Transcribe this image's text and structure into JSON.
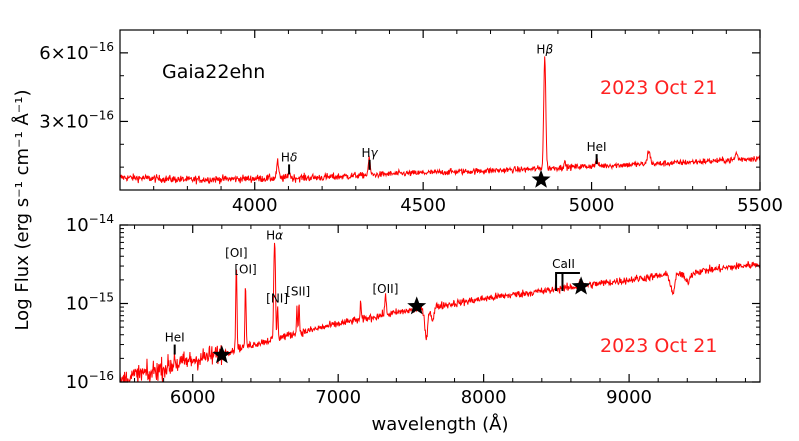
{
  "chart_data": [
    {
      "type": "line",
      "panel": "top",
      "title": "Gaia22ehn",
      "date_label": "2023 Oct 21",
      "xlim": [
        3600,
        5500
      ],
      "ylim": [
        0,
        7e-16
      ],
      "x_ticks": [
        {
          "value": 4000,
          "label": "4000"
        },
        {
          "value": 4500,
          "label": "4500"
        },
        {
          "value": 5000,
          "label": "5000"
        },
        {
          "value": 5500,
          "label": "5500"
        }
      ],
      "x_minor_step": 100,
      "y_ticks": [
        {
          "value": 3e-16,
          "base": "3×10",
          "exp": "−16"
        },
        {
          "value": 6e-16,
          "base": "6×10",
          "exp": "−16"
        }
      ],
      "y_minor_step": 1e-16,
      "line_labels": [
        {
          "name": "Hδ",
          "main": "H",
          "sub": "δ",
          "x": 4102,
          "y": 1.12e-16
        },
        {
          "name": "Hγ",
          "main": "H",
          "sub": "γ",
          "x": 4341,
          "y": 1.32e-16
        },
        {
          "name": "Hβ",
          "main": "H",
          "sub": "β",
          "x": 4861,
          "y": 5.85e-16
        },
        {
          "name": "HeI",
          "main": "HeI",
          "sub": "",
          "x": 5015,
          "y": 1.57e-16
        }
      ],
      "stars": [
        {
          "x": 4850,
          "y": 4.5e-17
        }
      ],
      "spectrum": {
        "continuum": [
          [
            3600,
            5.5e-17
          ],
          [
            3800,
            4.5e-17
          ],
          [
            4000,
            5e-17
          ],
          [
            4200,
            5.5e-17
          ],
          [
            4400,
            7e-17
          ],
          [
            4600,
            8e-17
          ],
          [
            4800,
            9e-17
          ],
          [
            5000,
            1.05e-16
          ],
          [
            5200,
            1.15e-16
          ],
          [
            5400,
            1.3e-16
          ],
          [
            5500,
            1.4e-16
          ]
        ],
        "emission": [
          [
            4068,
            7e-17,
            3
          ],
          [
            4102,
            3e-17,
            3
          ],
          [
            4340,
            7e-17,
            3
          ],
          [
            4861,
            4.9e-16,
            3
          ],
          [
            4920,
            2e-17,
            3
          ],
          [
            5015,
            2.5e-17,
            3
          ],
          [
            5170,
            6e-17,
            4
          ],
          [
            5430,
            3e-17,
            3
          ]
        ],
        "noise": 1.2e-17
      }
    },
    {
      "type": "line",
      "panel": "bottom",
      "scale": "log",
      "date_label": "2023 Oct 21",
      "xlabel": "wavelength (Å)",
      "xlim": [
        5500,
        9900
      ],
      "ylim": [
        1e-16,
        1e-14
      ],
      "x_ticks": [
        {
          "value": 6000,
          "label": "6000"
        },
        {
          "value": 7000,
          "label": "7000"
        },
        {
          "value": 8000,
          "label": "8000"
        },
        {
          "value": 9000,
          "label": "9000"
        }
      ],
      "x_minor_step": 200,
      "y_ticks": [
        {
          "value": 1e-16,
          "base": "10",
          "exp": "−16"
        },
        {
          "value": 1e-15,
          "base": "10",
          "exp": "−15"
        },
        {
          "value": 1e-14,
          "base": "10",
          "exp": "−14"
        }
      ],
      "line_labels": [
        {
          "name": "HeI",
          "main": "HeI",
          "sub": "",
          "x": 5876,
          "y": 3e-16
        },
        {
          "name": "[OI] 6300",
          "main": "[OI]",
          "sub": "",
          "x": 6300,
          "y": 3.6e-15
        },
        {
          "name": "[OI] 6363",
          "main": "[OI]",
          "sub": "",
          "x": 6363,
          "y": 2.2e-15
        },
        {
          "name": "Hα",
          "main": "H",
          "sub": "α",
          "x": 6563,
          "y": 6e-15
        },
        {
          "name": "[NI]",
          "main": "[NI]",
          "sub": "",
          "x": 6580,
          "y": 9.4e-16
        },
        {
          "name": "[SII]",
          "main": "[SII]",
          "sub": "",
          "x": 6725,
          "y": 1.15e-15
        },
        {
          "name": "[OII]",
          "main": "[OII]",
          "sub": "",
          "x": 7325,
          "y": 1.25e-15
        },
        {
          "name": "CaII",
          "main": "CaII",
          "sub": "",
          "x": 8542,
          "y": 2.45e-15
        }
      ],
      "stars": [
        {
          "x": 6200,
          "y": 2.2e-16
        },
        {
          "x": 7540,
          "y": 9.2e-16
        },
        {
          "x": 8670,
          "y": 1.65e-15
        }
      ],
      "spectrum": {
        "continuum": [
          [
            5500,
            1e-16
          ],
          [
            5600,
            1.2e-16
          ],
          [
            5800,
            1.5e-16
          ],
          [
            6000,
            1.9e-16
          ],
          [
            6200,
            2.3e-16
          ],
          [
            6500,
            3.3e-16
          ],
          [
            6800,
            4.5e-16
          ],
          [
            7000,
            5.5e-16
          ],
          [
            7200,
            6.5e-16
          ],
          [
            7500,
            8.2e-16
          ],
          [
            7800,
            1e-15
          ],
          [
            8000,
            1.15e-15
          ],
          [
            8500,
            1.5e-15
          ],
          [
            9000,
            2e-15
          ],
          [
            9500,
            2.6e-15
          ],
          [
            9900,
            3.2e-15
          ]
        ],
        "emission": [
          [
            5876,
            6e-17,
            4
          ],
          [
            6300,
            2.9e-15,
            3
          ],
          [
            6363,
            1.4e-15,
            3
          ],
          [
            6563,
            5.6e-15,
            4
          ],
          [
            6584,
            6e-16,
            3
          ],
          [
            6716,
            5e-16,
            3
          ],
          [
            6731,
            6e-16,
            3
          ],
          [
            7155,
            4e-16,
            3
          ],
          [
            7325,
            5e-16,
            5
          ],
          [
            8498,
            3e-16,
            4
          ],
          [
            8542,
            4e-16,
            4
          ],
          [
            8662,
            3e-16,
            4
          ]
        ],
        "absorption": [
          [
            7605,
            5.2e-16,
            12
          ],
          [
            7650,
            3e-16,
            10
          ],
          [
            9300,
            1e-15,
            15
          ],
          [
            9400,
            6e-16,
            20
          ],
          [
            5700,
            2e-17,
            10
          ]
        ],
        "noise": 0.06
      }
    }
  ],
  "y_axis_title": "Log Flux (erg s⁻¹ cm⁻¹ Å⁻¹)",
  "colors": {
    "spectrum": "#ff0000",
    "date_label": "#ff2222",
    "axes": "#000000"
  }
}
